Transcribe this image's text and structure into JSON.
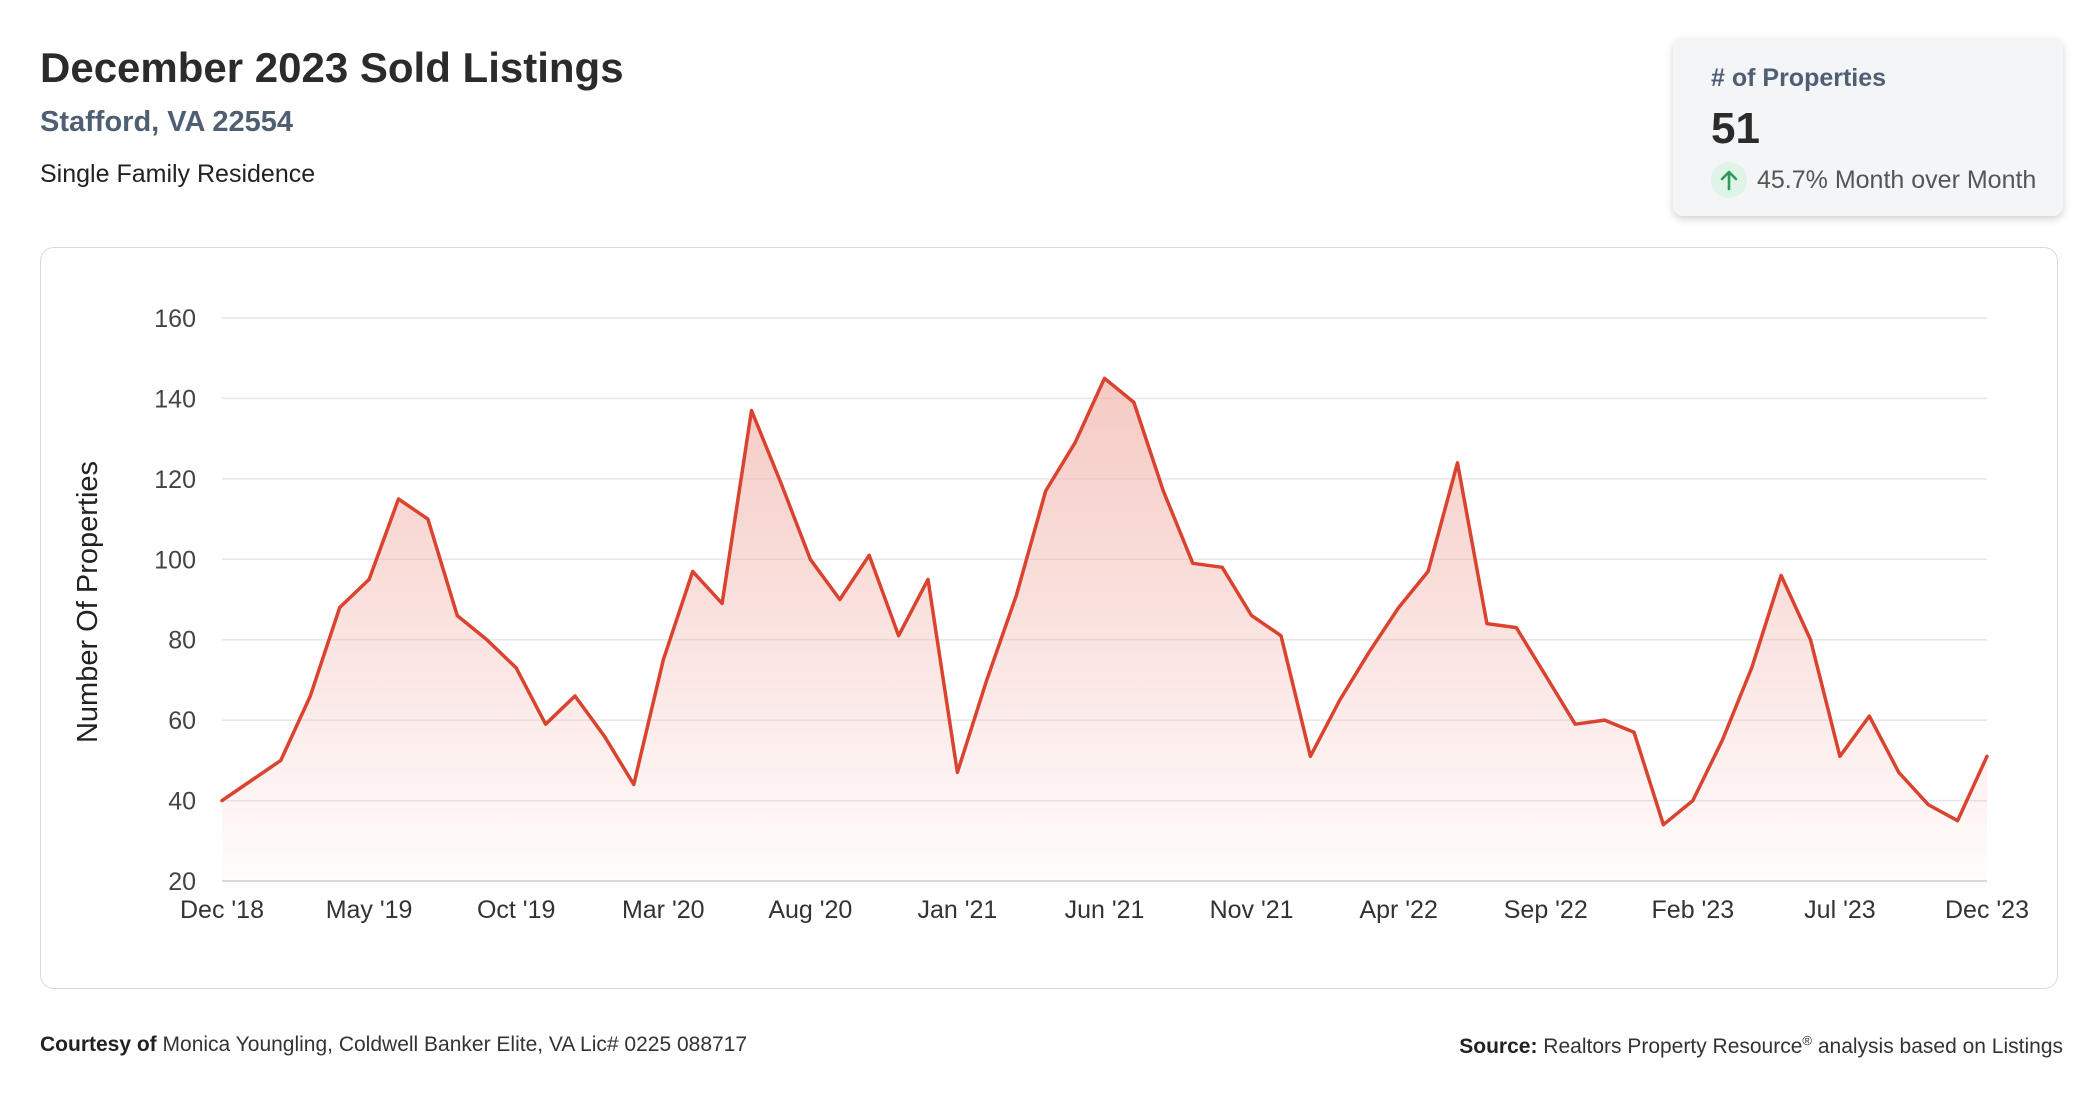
{
  "header": {
    "title": "December 2023 Sold Listings",
    "location": "Stafford, VA 22554",
    "property_type": "Single Family Residence"
  },
  "stat_card": {
    "label": "# of Properties",
    "value": "51",
    "change": "45.7% Month over Month",
    "trend_icon": "arrow-up-icon",
    "trend_color": "#2e9a57"
  },
  "footer": {
    "courtesy_label": "Courtesy of",
    "courtesy_text": "Monica Youngling, Coldwell Banker Elite, VA Lic# 0225 088717",
    "source_label": "Source:",
    "source_name": "Realtors Property Resource",
    "source_mark": "®",
    "source_text": "analysis based on Listings"
  },
  "chart_data": {
    "type": "area",
    "ylabel": "Number Of Properties",
    "xlabel": "",
    "ylim": [
      20,
      160
    ],
    "yticks": [
      20,
      40,
      60,
      80,
      100,
      120,
      140,
      160
    ],
    "grid": true,
    "line_color": "#d9432f",
    "fill_color": "#f2b8b0",
    "x_tick_labels": [
      "Dec '18",
      "May '19",
      "Oct '19",
      "Mar '20",
      "Aug '20",
      "Jan '21",
      "Jun '21",
      "Nov '21",
      "Apr '22",
      "Sep '22",
      "Feb '23",
      "Jul '23",
      "Dec '23"
    ],
    "x_tick_step": 5,
    "x": [
      "Dec '18",
      "Jan '19",
      "Feb '19",
      "Mar '19",
      "Apr '19",
      "May '19",
      "Jun '19",
      "Jul '19",
      "Aug '19",
      "Sep '19",
      "Oct '19",
      "Nov '19",
      "Dec '19",
      "Jan '20",
      "Feb '20",
      "Mar '20",
      "Apr '20",
      "May '20",
      "Jun '20",
      "Jul '20",
      "Aug '20",
      "Sep '20",
      "Oct '20",
      "Nov '20",
      "Dec '20",
      "Jan '21",
      "Feb '21",
      "Mar '21",
      "Apr '21",
      "May '21",
      "Jun '21",
      "Jul '21",
      "Aug '21",
      "Sep '21",
      "Oct '21",
      "Nov '21",
      "Dec '21",
      "Jan '22",
      "Feb '22",
      "Mar '22",
      "Apr '22",
      "May '22",
      "Jun '22",
      "Jul '22",
      "Aug '22",
      "Sep '22",
      "Oct '22",
      "Nov '22",
      "Dec '22",
      "Jan '23",
      "Feb '23",
      "Mar '23",
      "Apr '23",
      "May '23",
      "Jun '23",
      "Jul '23",
      "Aug '23",
      "Sep '23",
      "Oct '23",
      "Nov '23",
      "Dec '23"
    ],
    "values": [
      40,
      45,
      50,
      66,
      88,
      95,
      115,
      110,
      86,
      80,
      73,
      59,
      66,
      56,
      44,
      75,
      97,
      89,
      137,
      119,
      100,
      90,
      101,
      81,
      95,
      47,
      70,
      91,
      117,
      129,
      145,
      139,
      117,
      99,
      98,
      86,
      81,
      51,
      65,
      77,
      88,
      97,
      124,
      84,
      83,
      71,
      59,
      60,
      57,
      34,
      40,
      55,
      73,
      96,
      80,
      51,
      61,
      47,
      39,
      35,
      51
    ]
  }
}
